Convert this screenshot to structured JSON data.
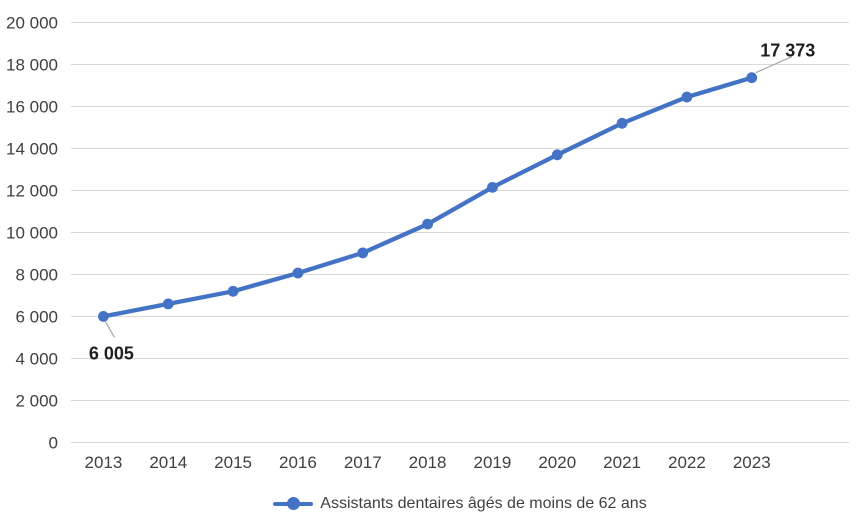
{
  "chart_data": {
    "type": "line",
    "title": "",
    "categories": [
      "2013",
      "2014",
      "2015",
      "2016",
      "2017",
      "2018",
      "2019",
      "2020",
      "2021",
      "2022",
      "2023"
    ],
    "series": [
      {
        "name": "Assistants dentaires âgés de moins de 62 ans",
        "color": "#4472C4",
        "values": [
          6005,
          6600,
          7200,
          8070,
          9030,
          10400,
          12150,
          13700,
          15200,
          16450,
          17373
        ]
      }
    ],
    "ylim": [
      0,
      20000
    ],
    "ytick_interval": 2000,
    "ytick_labels": [
      "0",
      "2 000",
      "4 000",
      "6 000",
      "8 000",
      "10 000",
      "12 000",
      "14 000",
      "16 000",
      "18 000",
      "20 000"
    ],
    "x_slots": 12,
    "grid": true,
    "legend_position": "bottom",
    "annotations": [
      {
        "category": "2013",
        "label": "6 005",
        "placement": "below"
      },
      {
        "category": "2023",
        "label": "17 373",
        "placement": "above"
      }
    ],
    "colors": {
      "line": "#4472C4",
      "gridline": "#D9D9D9",
      "axis_text": "#404040",
      "annotation_text": "#1F1F1F",
      "leader_line": "#A6A6A6",
      "background": "#FFFFFF"
    }
  }
}
